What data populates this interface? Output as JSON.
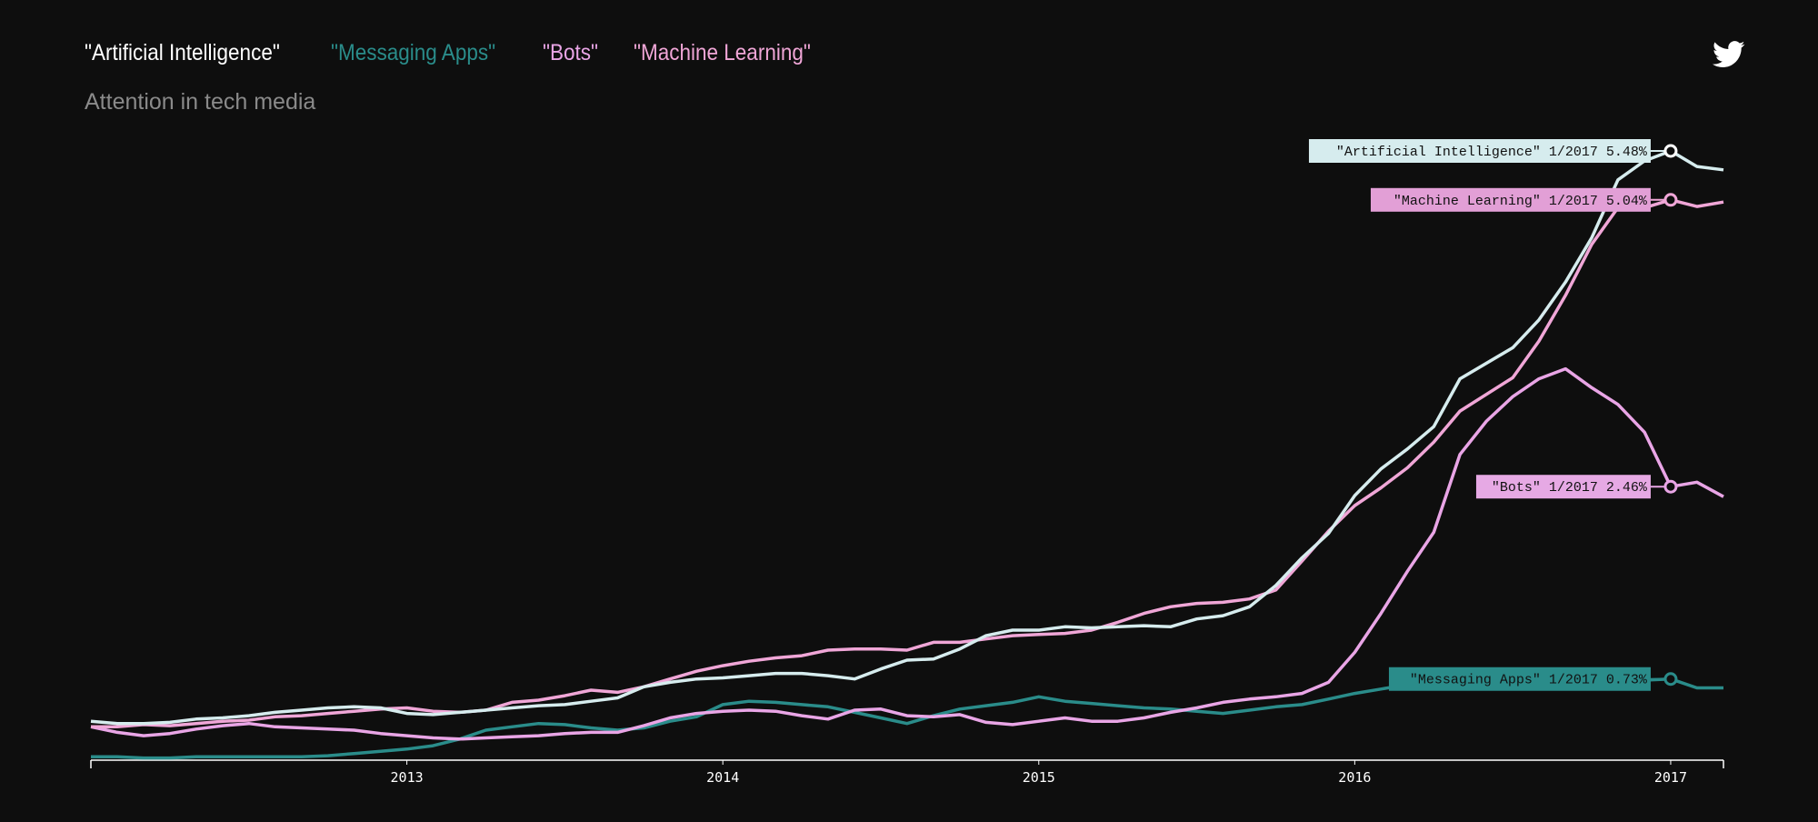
{
  "header": {
    "subtitle": "Attention in tech media",
    "share_icon": "twitter-icon"
  },
  "chart_data": {
    "type": "line",
    "title": "",
    "subtitle": "Attention in tech media",
    "x_tick_labels": [
      "2013",
      "2014",
      "2015",
      "2016",
      "2017"
    ],
    "x_range": [
      2012.0,
      2017.167
    ],
    "y_unit": "%",
    "ylim": [
      0,
      6
    ],
    "grid": false,
    "legend_position": "top-left",
    "series": [
      {
        "name": "\"Artificial Intelligence\"",
        "color": "#d6ecee",
        "callout": "\"Artificial Intelligence\" 1/2017 5.48%",
        "callout_date": "1/2017",
        "callout_value": 5.48,
        "points": [
          [
            2012.0,
            0.35
          ],
          [
            2012.083,
            0.33
          ],
          [
            2012.167,
            0.33
          ],
          [
            2012.25,
            0.34
          ],
          [
            2012.333,
            0.37
          ],
          [
            2012.417,
            0.38
          ],
          [
            2012.5,
            0.4
          ],
          [
            2012.583,
            0.43
          ],
          [
            2012.667,
            0.45
          ],
          [
            2012.75,
            0.47
          ],
          [
            2012.833,
            0.48
          ],
          [
            2012.917,
            0.47
          ],
          [
            2013.0,
            0.42
          ],
          [
            2013.083,
            0.41
          ],
          [
            2013.167,
            0.43
          ],
          [
            2013.25,
            0.45
          ],
          [
            2013.333,
            0.47
          ],
          [
            2013.417,
            0.49
          ],
          [
            2013.5,
            0.5
          ],
          [
            2013.583,
            0.53
          ],
          [
            2013.667,
            0.56
          ],
          [
            2013.75,
            0.66
          ],
          [
            2013.833,
            0.7
          ],
          [
            2013.917,
            0.73
          ],
          [
            2014.0,
            0.74
          ],
          [
            2014.083,
            0.76
          ],
          [
            2014.167,
            0.78
          ],
          [
            2014.25,
            0.78
          ],
          [
            2014.333,
            0.76
          ],
          [
            2014.417,
            0.73
          ],
          [
            2014.5,
            0.82
          ],
          [
            2014.583,
            0.9
          ],
          [
            2014.667,
            0.91
          ],
          [
            2014.75,
            1.0
          ],
          [
            2014.833,
            1.12
          ],
          [
            2014.917,
            1.17
          ],
          [
            2015.0,
            1.17
          ],
          [
            2015.083,
            1.2
          ],
          [
            2015.167,
            1.19
          ],
          [
            2015.25,
            1.2
          ],
          [
            2015.333,
            1.21
          ],
          [
            2015.417,
            1.2
          ],
          [
            2015.5,
            1.27
          ],
          [
            2015.583,
            1.3
          ],
          [
            2015.667,
            1.38
          ],
          [
            2015.75,
            1.57
          ],
          [
            2015.833,
            1.82
          ],
          [
            2015.917,
            2.04
          ],
          [
            2016.0,
            2.38
          ],
          [
            2016.083,
            2.62
          ],
          [
            2016.167,
            2.8
          ],
          [
            2016.25,
            3.0
          ],
          [
            2016.333,
            3.43
          ],
          [
            2016.5,
            3.71
          ],
          [
            2016.583,
            3.96
          ],
          [
            2016.667,
            4.3
          ],
          [
            2016.75,
            4.7
          ],
          [
            2016.833,
            5.22
          ],
          [
            2016.917,
            5.39
          ],
          [
            2017.0,
            5.48
          ],
          [
            2017.083,
            5.34
          ],
          [
            2017.167,
            5.31
          ]
        ]
      },
      {
        "name": "\"Messaging Apps\"",
        "color": "#2a8c8a",
        "callout": "\"Messaging Apps\" 1/2017 0.73%",
        "callout_date": "1/2017",
        "callout_value": 0.73,
        "points": [
          [
            2012.0,
            0.03
          ],
          [
            2012.083,
            0.03
          ],
          [
            2012.167,
            0.02
          ],
          [
            2012.25,
            0.02
          ],
          [
            2012.333,
            0.03
          ],
          [
            2012.417,
            0.03
          ],
          [
            2012.5,
            0.03
          ],
          [
            2012.583,
            0.03
          ],
          [
            2012.667,
            0.03
          ],
          [
            2012.75,
            0.04
          ],
          [
            2012.833,
            0.06
          ],
          [
            2012.917,
            0.08
          ],
          [
            2013.0,
            0.1
          ],
          [
            2013.083,
            0.13
          ],
          [
            2013.167,
            0.19
          ],
          [
            2013.25,
            0.27
          ],
          [
            2013.333,
            0.3
          ],
          [
            2013.417,
            0.33
          ],
          [
            2013.5,
            0.32
          ],
          [
            2013.583,
            0.29
          ],
          [
            2013.667,
            0.27
          ],
          [
            2013.75,
            0.29
          ],
          [
            2013.833,
            0.35
          ],
          [
            2013.917,
            0.39
          ],
          [
            2014.0,
            0.5
          ],
          [
            2014.083,
            0.53
          ],
          [
            2014.167,
            0.52
          ],
          [
            2014.25,
            0.5
          ],
          [
            2014.333,
            0.48
          ],
          [
            2014.417,
            0.43
          ],
          [
            2014.5,
            0.38
          ],
          [
            2014.583,
            0.33
          ],
          [
            2014.667,
            0.4
          ],
          [
            2014.75,
            0.46
          ],
          [
            2014.833,
            0.49
          ],
          [
            2014.917,
            0.52
          ],
          [
            2015.0,
            0.57
          ],
          [
            2015.083,
            0.53
          ],
          [
            2015.167,
            0.51
          ],
          [
            2015.25,
            0.49
          ],
          [
            2015.333,
            0.47
          ],
          [
            2015.417,
            0.46
          ],
          [
            2015.5,
            0.44
          ],
          [
            2015.583,
            0.42
          ],
          [
            2015.667,
            0.45
          ],
          [
            2015.75,
            0.48
          ],
          [
            2015.833,
            0.5
          ],
          [
            2015.917,
            0.55
          ],
          [
            2016.0,
            0.6
          ],
          [
            2016.083,
            0.64
          ],
          [
            2016.167,
            0.68
          ],
          [
            2016.25,
            0.7
          ],
          [
            2016.333,
            0.72
          ],
          [
            2016.417,
            0.73
          ],
          [
            2016.5,
            0.74
          ],
          [
            2016.583,
            0.73
          ],
          [
            2016.667,
            0.74
          ],
          [
            2016.75,
            0.73
          ],
          [
            2016.833,
            0.72
          ],
          [
            2016.917,
            0.72
          ],
          [
            2017.0,
            0.73
          ],
          [
            2017.083,
            0.65
          ],
          [
            2017.167,
            0.65
          ]
        ]
      },
      {
        "name": "\"Bots\"",
        "color": "#e9a5e6",
        "callout": "\"Bots\" 1/2017 2.46%",
        "callout_date": "1/2017",
        "callout_value": 2.46,
        "points": [
          [
            2012.0,
            0.3
          ],
          [
            2012.083,
            0.25
          ],
          [
            2012.167,
            0.22
          ],
          [
            2012.25,
            0.24
          ],
          [
            2012.333,
            0.28
          ],
          [
            2012.417,
            0.31
          ],
          [
            2012.5,
            0.33
          ],
          [
            2012.583,
            0.3
          ],
          [
            2012.667,
            0.29
          ],
          [
            2012.75,
            0.28
          ],
          [
            2012.833,
            0.27
          ],
          [
            2012.917,
            0.24
          ],
          [
            2013.0,
            0.22
          ],
          [
            2013.083,
            0.2
          ],
          [
            2013.167,
            0.19
          ],
          [
            2013.25,
            0.2
          ],
          [
            2013.333,
            0.21
          ],
          [
            2013.417,
            0.22
          ],
          [
            2013.5,
            0.24
          ],
          [
            2013.583,
            0.25
          ],
          [
            2013.667,
            0.25
          ],
          [
            2013.75,
            0.31
          ],
          [
            2013.833,
            0.38
          ],
          [
            2013.917,
            0.42
          ],
          [
            2014.0,
            0.44
          ],
          [
            2014.083,
            0.45
          ],
          [
            2014.167,
            0.44
          ],
          [
            2014.25,
            0.4
          ],
          [
            2014.333,
            0.37
          ],
          [
            2014.417,
            0.45
          ],
          [
            2014.5,
            0.46
          ],
          [
            2014.583,
            0.4
          ],
          [
            2014.667,
            0.39
          ],
          [
            2014.75,
            0.41
          ],
          [
            2014.833,
            0.34
          ],
          [
            2014.917,
            0.32
          ],
          [
            2015.0,
            0.35
          ],
          [
            2015.083,
            0.38
          ],
          [
            2015.167,
            0.35
          ],
          [
            2015.25,
            0.35
          ],
          [
            2015.333,
            0.38
          ],
          [
            2015.417,
            0.43
          ],
          [
            2015.5,
            0.47
          ],
          [
            2015.583,
            0.52
          ],
          [
            2015.667,
            0.55
          ],
          [
            2015.75,
            0.57
          ],
          [
            2015.833,
            0.6
          ],
          [
            2015.917,
            0.7
          ],
          [
            2016.0,
            0.97
          ],
          [
            2016.083,
            1.32
          ],
          [
            2016.167,
            1.7
          ],
          [
            2016.25,
            2.05
          ],
          [
            2016.333,
            2.75
          ],
          [
            2016.417,
            3.05
          ],
          [
            2016.5,
            3.27
          ],
          [
            2016.583,
            3.43
          ],
          [
            2016.667,
            3.52
          ],
          [
            2016.75,
            3.35
          ],
          [
            2016.833,
            3.2
          ],
          [
            2016.917,
            2.95
          ],
          [
            2017.0,
            2.46
          ],
          [
            2017.083,
            2.5
          ],
          [
            2017.167,
            2.37
          ]
        ]
      },
      {
        "name": "\"Machine Learning\"",
        "color": "#f0a6d7",
        "callout": "\"Machine Learning\" 1/2017 5.04%",
        "callout_date": "1/2017",
        "callout_value": 5.04,
        "points": [
          [
            2012.0,
            0.3
          ],
          [
            2012.083,
            0.3
          ],
          [
            2012.167,
            0.32
          ],
          [
            2012.25,
            0.31
          ],
          [
            2012.333,
            0.33
          ],
          [
            2012.417,
            0.35
          ],
          [
            2012.5,
            0.36
          ],
          [
            2012.583,
            0.39
          ],
          [
            2012.667,
            0.4
          ],
          [
            2012.75,
            0.42
          ],
          [
            2012.833,
            0.44
          ],
          [
            2012.917,
            0.46
          ],
          [
            2013.0,
            0.47
          ],
          [
            2013.083,
            0.44
          ],
          [
            2013.167,
            0.43
          ],
          [
            2013.25,
            0.45
          ],
          [
            2013.333,
            0.52
          ],
          [
            2013.417,
            0.54
          ],
          [
            2013.5,
            0.58
          ],
          [
            2013.583,
            0.63
          ],
          [
            2013.667,
            0.61
          ],
          [
            2013.75,
            0.66
          ],
          [
            2013.833,
            0.73
          ],
          [
            2013.917,
            0.8
          ],
          [
            2014.0,
            0.85
          ],
          [
            2014.083,
            0.89
          ],
          [
            2014.167,
            0.92
          ],
          [
            2014.25,
            0.94
          ],
          [
            2014.333,
            0.99
          ],
          [
            2014.417,
            1.0
          ],
          [
            2014.5,
            1.0
          ],
          [
            2014.583,
            0.99
          ],
          [
            2014.667,
            1.06
          ],
          [
            2014.75,
            1.06
          ],
          [
            2014.833,
            1.09
          ],
          [
            2014.917,
            1.12
          ],
          [
            2015.0,
            1.13
          ],
          [
            2015.083,
            1.14
          ],
          [
            2015.167,
            1.17
          ],
          [
            2015.25,
            1.24
          ],
          [
            2015.333,
            1.32
          ],
          [
            2015.417,
            1.38
          ],
          [
            2015.5,
            1.41
          ],
          [
            2015.583,
            1.42
          ],
          [
            2015.667,
            1.45
          ],
          [
            2015.75,
            1.53
          ],
          [
            2015.833,
            1.79
          ],
          [
            2015.917,
            2.06
          ],
          [
            2016.0,
            2.29
          ],
          [
            2016.083,
            2.45
          ],
          [
            2016.167,
            2.63
          ],
          [
            2016.25,
            2.86
          ],
          [
            2016.333,
            3.14
          ],
          [
            2016.5,
            3.44
          ],
          [
            2016.583,
            3.77
          ],
          [
            2016.667,
            4.18
          ],
          [
            2016.75,
            4.64
          ],
          [
            2016.833,
            4.97
          ],
          [
            2016.917,
            4.97
          ],
          [
            2017.0,
            5.04
          ],
          [
            2017.083,
            4.98
          ],
          [
            2017.167,
            5.02
          ]
        ]
      }
    ]
  }
}
